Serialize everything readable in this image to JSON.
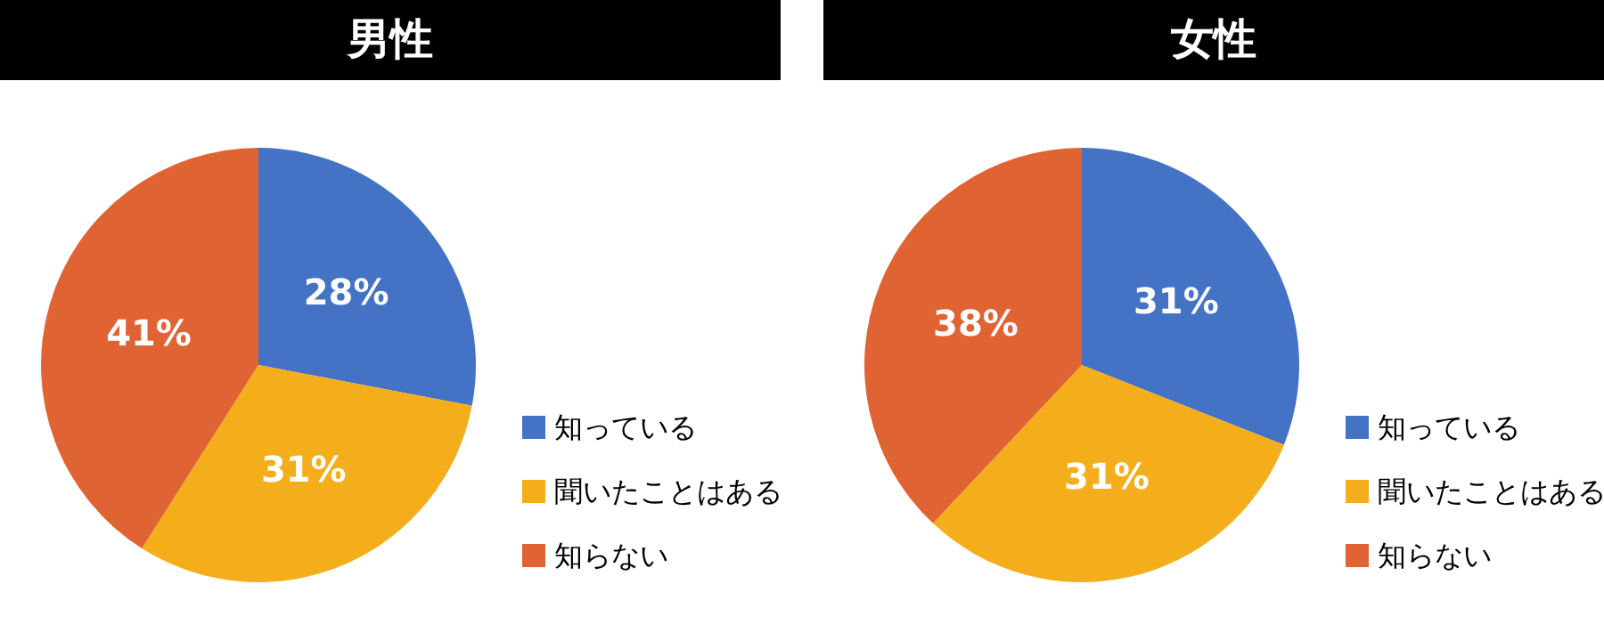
{
  "chart_data": [
    {
      "type": "pie",
      "title": "男性",
      "categories": [
        "知っている",
        "聞いたことはある",
        "知らない"
      ],
      "values": [
        28,
        31,
        41
      ],
      "value_labels": [
        "28%",
        "31%",
        "41%"
      ],
      "colors": [
        "#4472c4",
        "#f5ae1b",
        "#e06433"
      ],
      "legend": "right"
    },
    {
      "type": "pie",
      "title": "女性",
      "categories": [
        "知っている",
        "聞いたことはある",
        "知らない"
      ],
      "values": [
        31,
        31,
        38
      ],
      "value_labels": [
        "31%",
        "31%",
        "38%"
      ],
      "colors": [
        "#4472c4",
        "#f5ae1b",
        "#e06433"
      ],
      "legend": "right"
    }
  ]
}
